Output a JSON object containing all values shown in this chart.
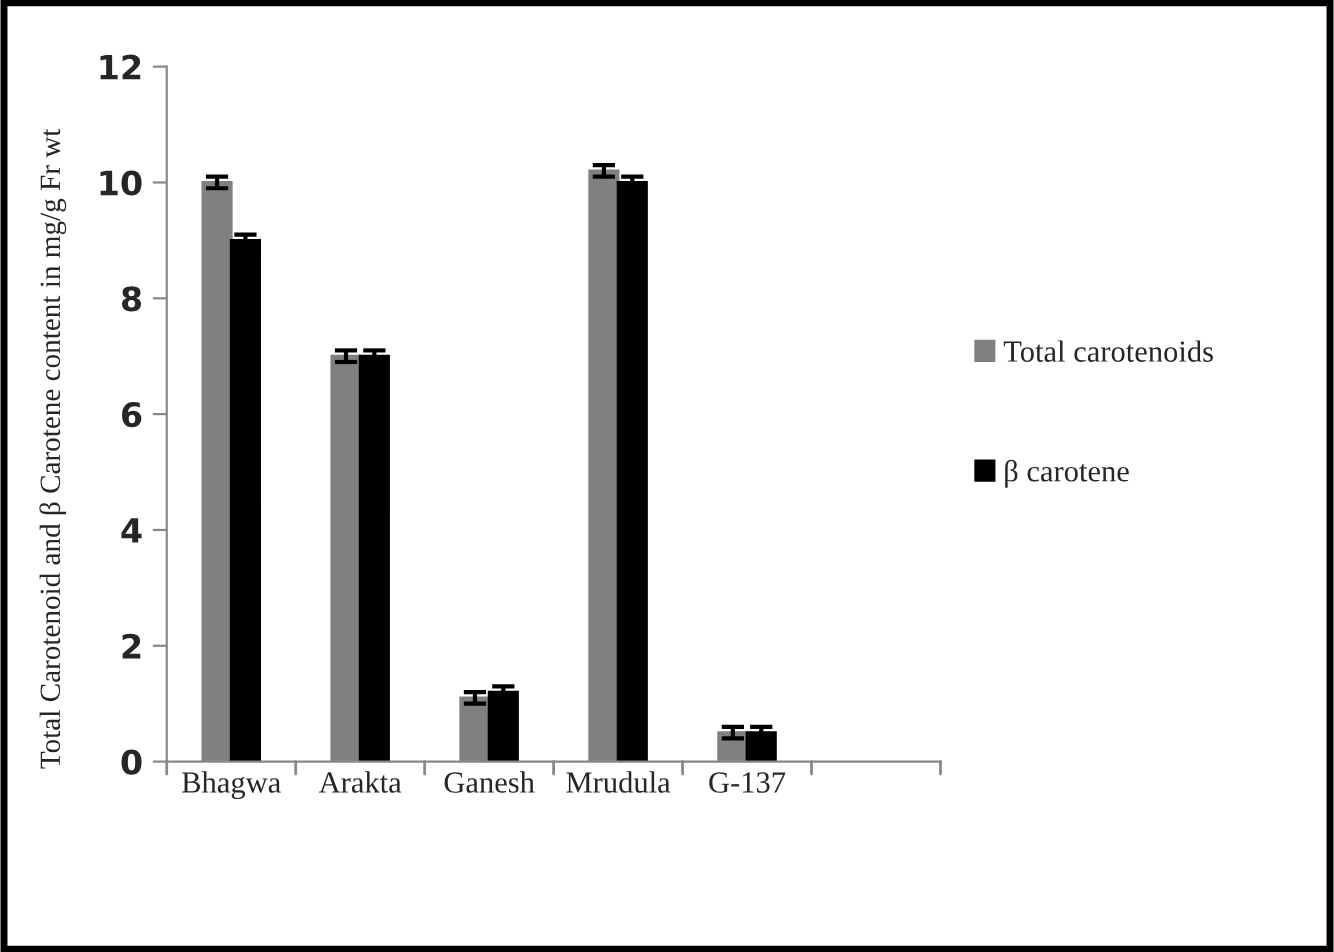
{
  "chart_data": {
    "type": "bar",
    "ylabel": "Total Carotenoid and β Carotene content in mg/g Fr wt",
    "categories": [
      "Bhagwa",
      "Arakta",
      "Ganesh",
      "Mrudula",
      "G-137",
      null
    ],
    "series": [
      {
        "name": "Total carotenoids",
        "color": "#808080",
        "values": [
          10.0,
          7.0,
          1.1,
          10.2,
          0.5,
          null
        ],
        "errors": [
          0.1,
          0.1,
          0.1,
          0.1,
          0.1,
          null
        ]
      },
      {
        "name": "β carotene",
        "color": "#000000",
        "values": [
          9.0,
          7.0,
          1.2,
          10.0,
          0.5,
          null
        ],
        "errors": [
          0.1,
          0.1,
          0.1,
          0.1,
          0.1,
          null
        ]
      }
    ],
    "ylim": [
      0,
      12
    ],
    "yticks": [
      0,
      2,
      4,
      6,
      8,
      10,
      12
    ],
    "grid": false,
    "legend": "right"
  }
}
